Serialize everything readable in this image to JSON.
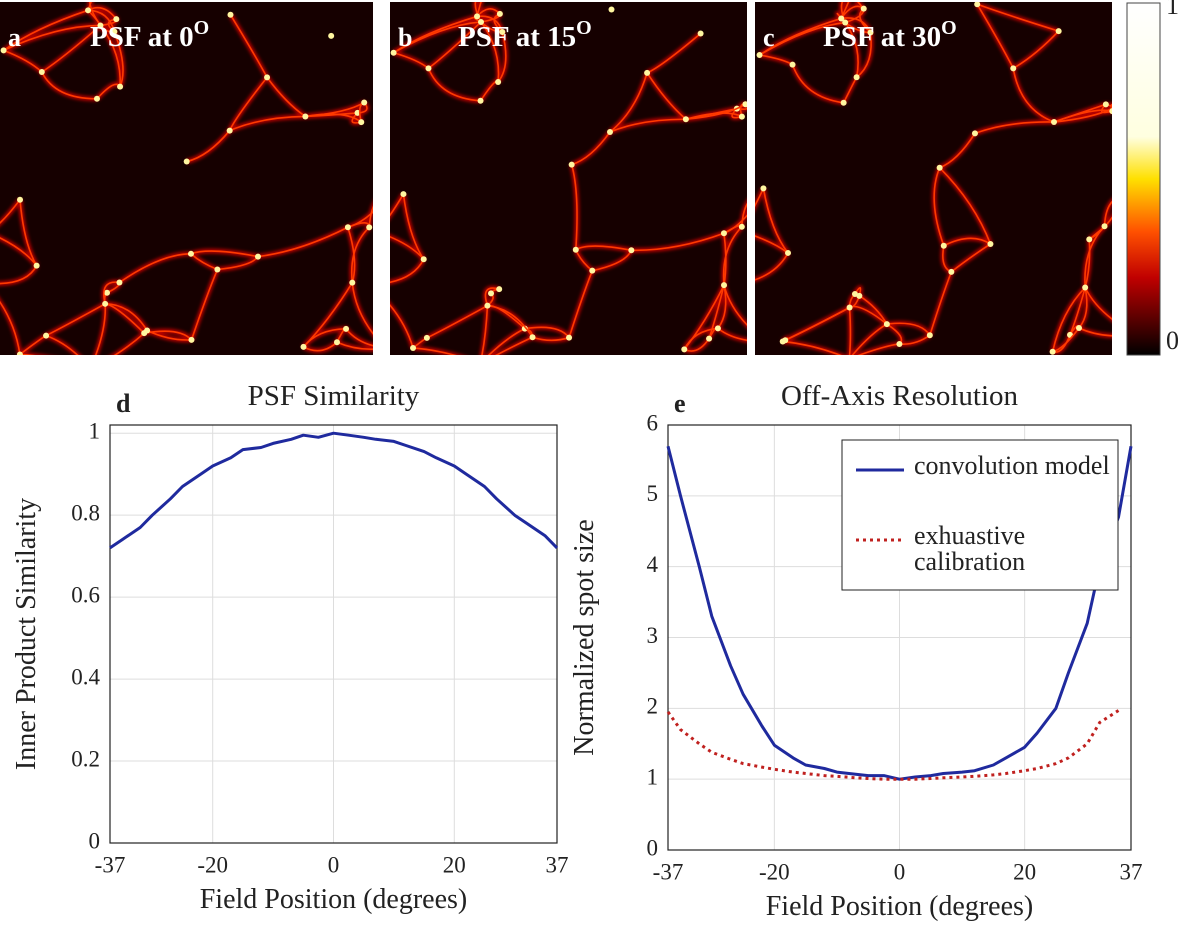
{
  "panels": [
    {
      "label": "a",
      "title": "PSF at 0",
      "sup": "O"
    },
    {
      "label": "b",
      "title": "PSF at 15",
      "sup": "O"
    },
    {
      "label": "c",
      "title": "PSF at 30",
      "sup": "O"
    }
  ],
  "colorbar": {
    "ticks": [
      0,
      1
    ]
  },
  "chart_data": [
    {
      "type": "line",
      "label": "d",
      "title": "PSF Similarity",
      "x_label": "Field Position (degrees)",
      "y_label": "Inner Product Similarity",
      "x": [
        -37,
        -35,
        -32,
        -30,
        -27,
        -25,
        -22,
        -20,
        -17,
        -15,
        -12,
        -10,
        -7,
        -5,
        -2.5,
        0,
        2.5,
        5,
        7,
        10,
        12,
        15,
        17,
        20,
        22,
        25,
        27,
        30,
        32,
        35,
        37
      ],
      "series": [
        {
          "name": "PSF similarity",
          "color": "#1f2a9e",
          "values": [
            0.72,
            0.74,
            0.77,
            0.8,
            0.84,
            0.87,
            0.9,
            0.92,
            0.94,
            0.96,
            0.965,
            0.975,
            0.985,
            0.995,
            0.99,
            1.0,
            0.995,
            0.99,
            0.985,
            0.98,
            0.97,
            0.955,
            0.94,
            0.92,
            0.9,
            0.87,
            0.84,
            0.8,
            0.78,
            0.75,
            0.72
          ]
        }
      ],
      "xlim": [
        -37,
        37
      ],
      "xticks": [
        -37,
        -20,
        0,
        20,
        37
      ],
      "ylim": [
        0,
        1.02
      ],
      "yticks": [
        0,
        0.2,
        0.4,
        0.6,
        0.8,
        1
      ],
      "grid": true
    },
    {
      "type": "line",
      "label": "e",
      "title": "Off-Axis Resolution",
      "x_label": "Field Position (degrees)",
      "y_label": "Normalized spot size",
      "x": [
        -37,
        -35,
        -32,
        -30,
        -27,
        -25,
        -22,
        -20,
        -17,
        -15,
        -12,
        -10,
        -7,
        -5,
        -2.5,
        0,
        2.5,
        5,
        7,
        10,
        12,
        15,
        17,
        20,
        22,
        25,
        27,
        30,
        32,
        35,
        37
      ],
      "series": [
        {
          "name": "convolution model",
          "color": "#1f2a9e",
          "dash": false,
          "values": [
            5.7,
            5.0,
            4.0,
            3.3,
            2.6,
            2.2,
            1.75,
            1.48,
            1.3,
            1.2,
            1.15,
            1.1,
            1.07,
            1.05,
            1.05,
            1.0,
            1.03,
            1.05,
            1.08,
            1.1,
            1.12,
            1.2,
            1.3,
            1.45,
            1.65,
            2.0,
            2.5,
            3.2,
            4.0,
            4.7,
            5.7
          ]
        },
        {
          "name": "exhuastive calibration",
          "color": "#c0211f",
          "dash": true,
          "values": [
            1.95,
            1.7,
            1.5,
            1.38,
            1.28,
            1.22,
            1.17,
            1.14,
            1.1,
            1.08,
            1.05,
            1.04,
            1.02,
            1.01,
            1.0,
            1.0,
            1.0,
            1.01,
            1.02,
            1.03,
            1.04,
            1.06,
            1.08,
            1.12,
            1.15,
            1.22,
            1.3,
            1.5,
            1.8,
            1.97,
            null
          ]
        }
      ],
      "xlim": [
        -37,
        37
      ],
      "xticks": [
        -37,
        -20,
        0,
        20,
        37
      ],
      "ylim": [
        0,
        6
      ],
      "yticks": [
        0,
        1,
        2,
        3,
        4,
        5,
        6
      ],
      "grid": true,
      "legend": "upper-right"
    }
  ]
}
